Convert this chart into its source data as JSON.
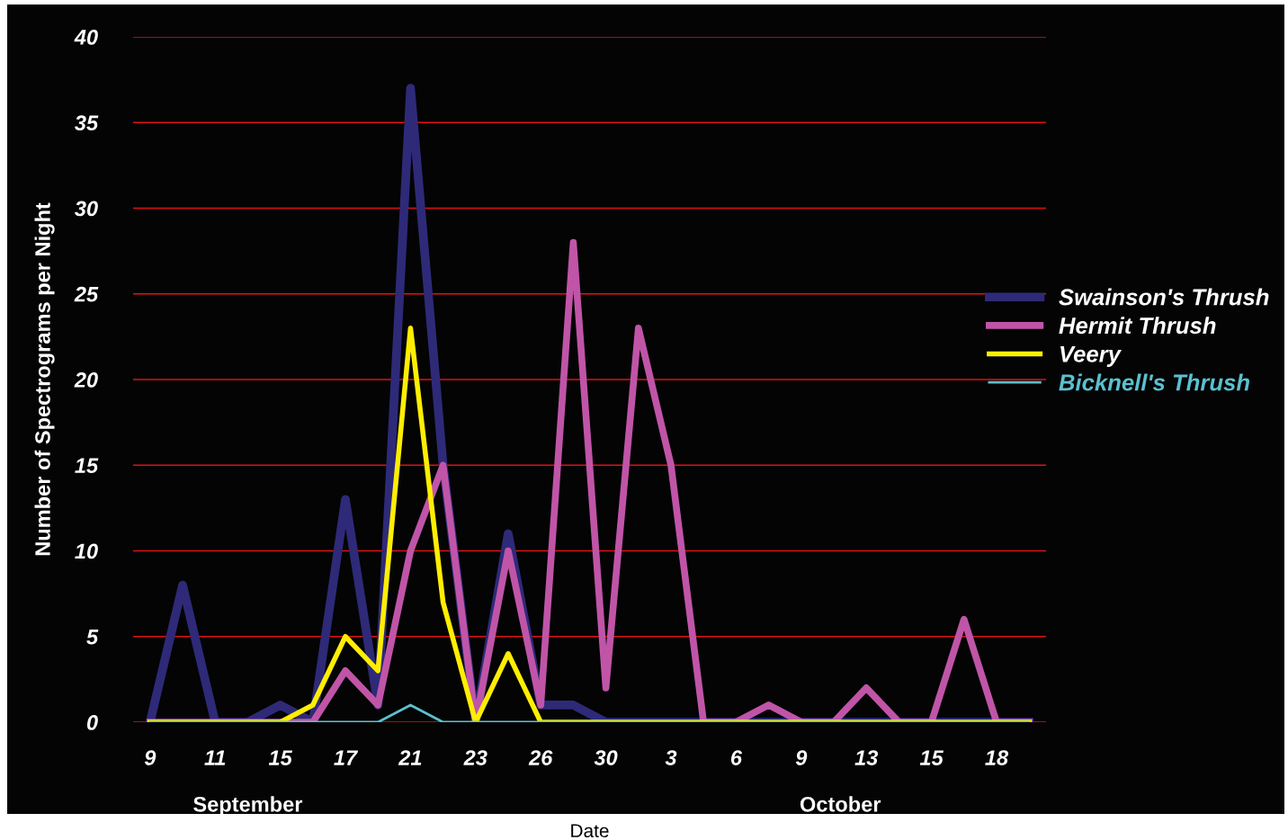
{
  "chart_data": {
    "type": "line",
    "xlabel": "Date",
    "ylabel": "Number of Spectrograms per Night",
    "categories": [
      "9",
      null,
      "11",
      null,
      "15",
      null,
      "17",
      null,
      "21",
      null,
      "23",
      null,
      "26",
      null,
      "30",
      null,
      "3",
      null,
      "6",
      null,
      "9",
      null,
      "13",
      null,
      "15",
      null,
      "18",
      null
    ],
    "series": [
      {
        "name": "Swainson's Thrush",
        "color": "#2e2a78",
        "values": [
          0,
          8,
          0,
          0,
          1,
          0,
          13,
          1,
          37,
          15,
          0,
          11,
          1,
          1,
          0,
          0,
          0,
          0,
          0,
          0,
          0,
          0,
          0,
          0,
          0,
          0,
          0,
          0
        ]
      },
      {
        "name": "Hermit Thrush",
        "color": "#c055a8",
        "values": [
          0,
          0,
          0,
          0,
          0,
          0,
          3,
          1,
          10,
          15,
          0,
          10,
          1,
          28,
          2,
          23,
          15,
          0,
          0,
          1,
          0,
          0,
          2,
          0,
          0,
          6,
          0,
          0
        ]
      },
      {
        "name": "Veery",
        "color": "#ffee00",
        "values": [
          0,
          0,
          0,
          0,
          0,
          1,
          5,
          3,
          23,
          7,
          0,
          4,
          0,
          0,
          0,
          0,
          0,
          0,
          0,
          0,
          0,
          0,
          0,
          0,
          0,
          0,
          0,
          0
        ]
      },
      {
        "name": "Bicknell's Thrush",
        "color": "#5bc0d0",
        "values": [
          0,
          0,
          0,
          0,
          0,
          0,
          0,
          0,
          1,
          0,
          0,
          0,
          0,
          0,
          0,
          0,
          0,
          0,
          0,
          0,
          0,
          0,
          0,
          0,
          0,
          0,
          0,
          0
        ]
      }
    ],
    "ylim": [
      0,
      40
    ],
    "yticks": [
      0,
      5,
      10,
      15,
      20,
      25,
      30,
      35,
      40
    ],
    "grid": "y",
    "legend": "right",
    "annotations": [
      "September",
      "October"
    ]
  }
}
